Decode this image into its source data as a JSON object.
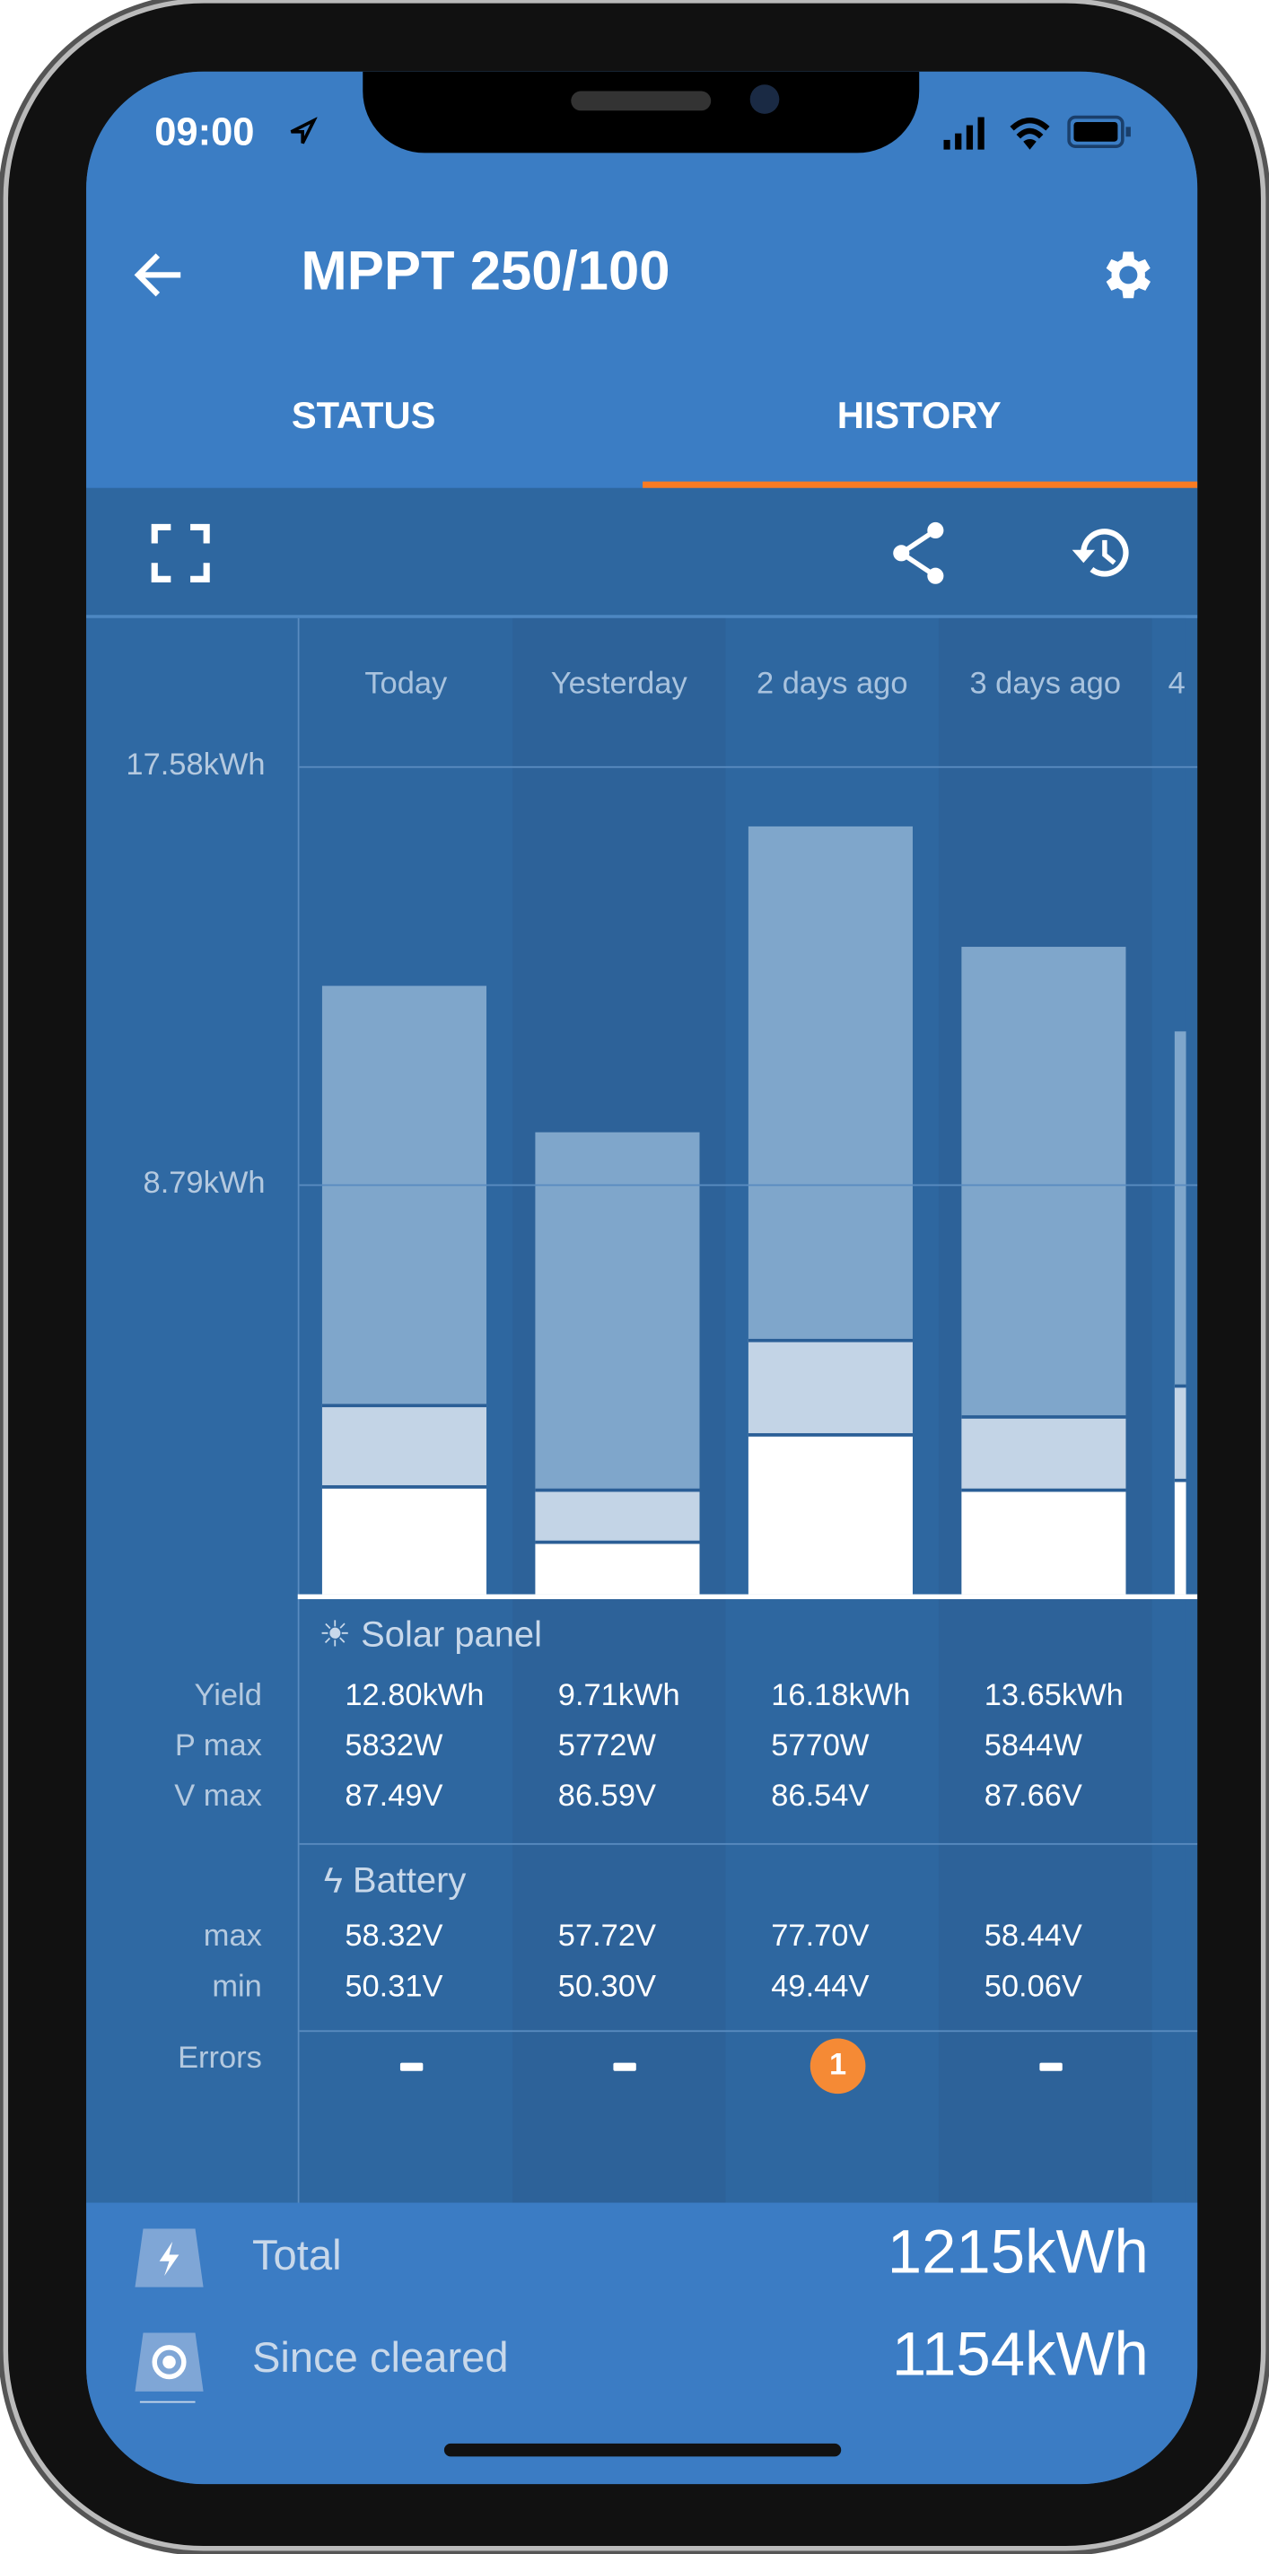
{
  "status_bar": {
    "time": "09:00"
  },
  "header": {
    "title": "MPPT 250/100",
    "back_icon": "arrow-left-icon",
    "settings_icon": "gear-icon"
  },
  "tabs": [
    {
      "label": "STATUS",
      "active": false
    },
    {
      "label": "HISTORY",
      "active": true
    }
  ],
  "toolbar": {
    "icons": [
      "fullscreen-icon",
      "share-icon",
      "history-icon"
    ]
  },
  "colors": {
    "header": "#3b7dc4",
    "accent": "#f97b22",
    "bar_top": "#7fa6cb",
    "bar_mid": "#c3d4e6",
    "bar_bottom": "#ffffff",
    "error_badge": "#f58a35"
  },
  "chart_data": {
    "type": "bar",
    "stacked": true,
    "categories": [
      "Today",
      "Yesterday",
      "2 days ago",
      "3 days ago",
      "4"
    ],
    "y_ticks": [
      "17.58kWh",
      "8.79kWh"
    ],
    "y_tick_values": [
      17.58,
      8.79
    ],
    "ylim": [
      0,
      17.58
    ],
    "grid": true,
    "series": [
      {
        "values": [
          2.26,
          1.08,
          3.37,
          2.19,
          2.4
        ]
      },
      {
        "values": [
          1.74,
          1.11,
          2.02,
          1.56,
          2.02
        ]
      },
      {
        "values": [
          8.93,
          7.61,
          10.95,
          10.01,
          7.54
        ]
      }
    ]
  },
  "table": {
    "solar_title": "Solar panel",
    "battery_title": "Battery",
    "labels": {
      "yield": "Yield",
      "pmax": "P max",
      "vmax": "V max",
      "bmax": "max",
      "bmin": "min",
      "errors": "Errors"
    },
    "days": [
      {
        "yield": "12.80kWh",
        "pmax": "5832W",
        "vmax": "87.49V",
        "bmax": "58.32V",
        "bmin": "50.31V",
        "errors": "-"
      },
      {
        "yield": "9.71kWh",
        "pmax": "5772W",
        "vmax": "86.59V",
        "bmax": "57.72V",
        "bmin": "50.30V",
        "errors": "-"
      },
      {
        "yield": "16.18kWh",
        "pmax": "5770W",
        "vmax": "86.54V",
        "bmax": "77.70V",
        "bmin": "49.44V",
        "errors": "1"
      },
      {
        "yield": "13.65kWh",
        "pmax": "5844W",
        "vmax": "87.66V",
        "bmax": "58.44V",
        "bmin": "50.06V",
        "errors": "-"
      }
    ]
  },
  "totals": {
    "total_label": "Total",
    "total_value": "1215kWh",
    "since_label": "Since cleared",
    "since_value": "1154kWh"
  }
}
